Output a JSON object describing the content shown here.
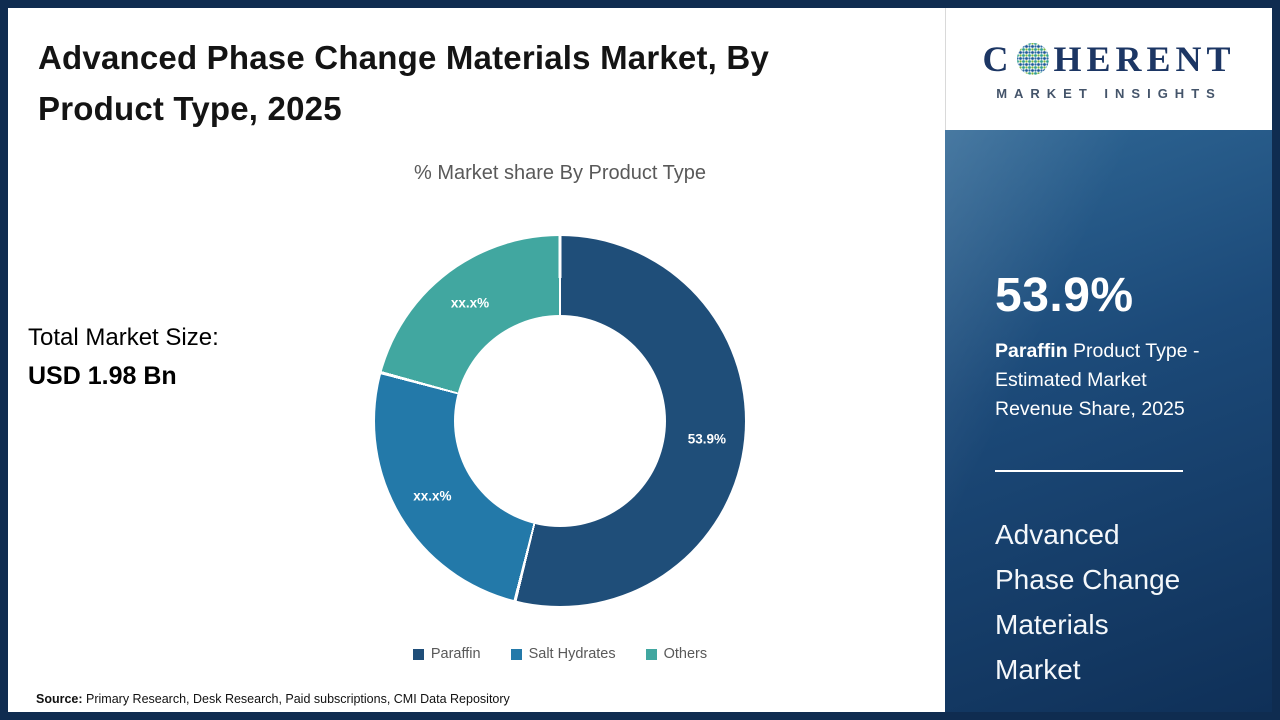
{
  "header": {
    "title": "Advanced Phase Change Materials Market, By Product Type, 2025"
  },
  "chart_data": {
    "type": "pie",
    "donut": true,
    "title": "% Market share By Product Type",
    "slices": [
      {
        "label": "Paraffin",
        "value": 53.9,
        "display": "53.9%",
        "color": "#1f4e79"
      },
      {
        "label": "Salt Hydrates",
        "value": 25.3,
        "display": "xx.x%",
        "color": "#2379a9"
      },
      {
        "label": "Others",
        "value": 20.8,
        "display": "xx.x%",
        "color": "#41a7a0"
      }
    ],
    "legend_position": "bottom"
  },
  "totals": {
    "label": "Total Market Size:",
    "value": "USD 1.98 Bn"
  },
  "source": {
    "prefix": "Source:",
    "text": " Primary Research, Desk Research, Paid subscriptions, CMI Data Repository"
  },
  "logo": {
    "brand_prefix": "C",
    "brand_suffix": "HERENT",
    "tagline": "MARKET INSIGHTS"
  },
  "panel": {
    "stat": "53.9%",
    "desc_bold": "Paraffin",
    "desc_rest": " Product Type - Estimated Market Revenue Share, 2025",
    "market_name": "Advanced Phase Change Materials Market"
  }
}
